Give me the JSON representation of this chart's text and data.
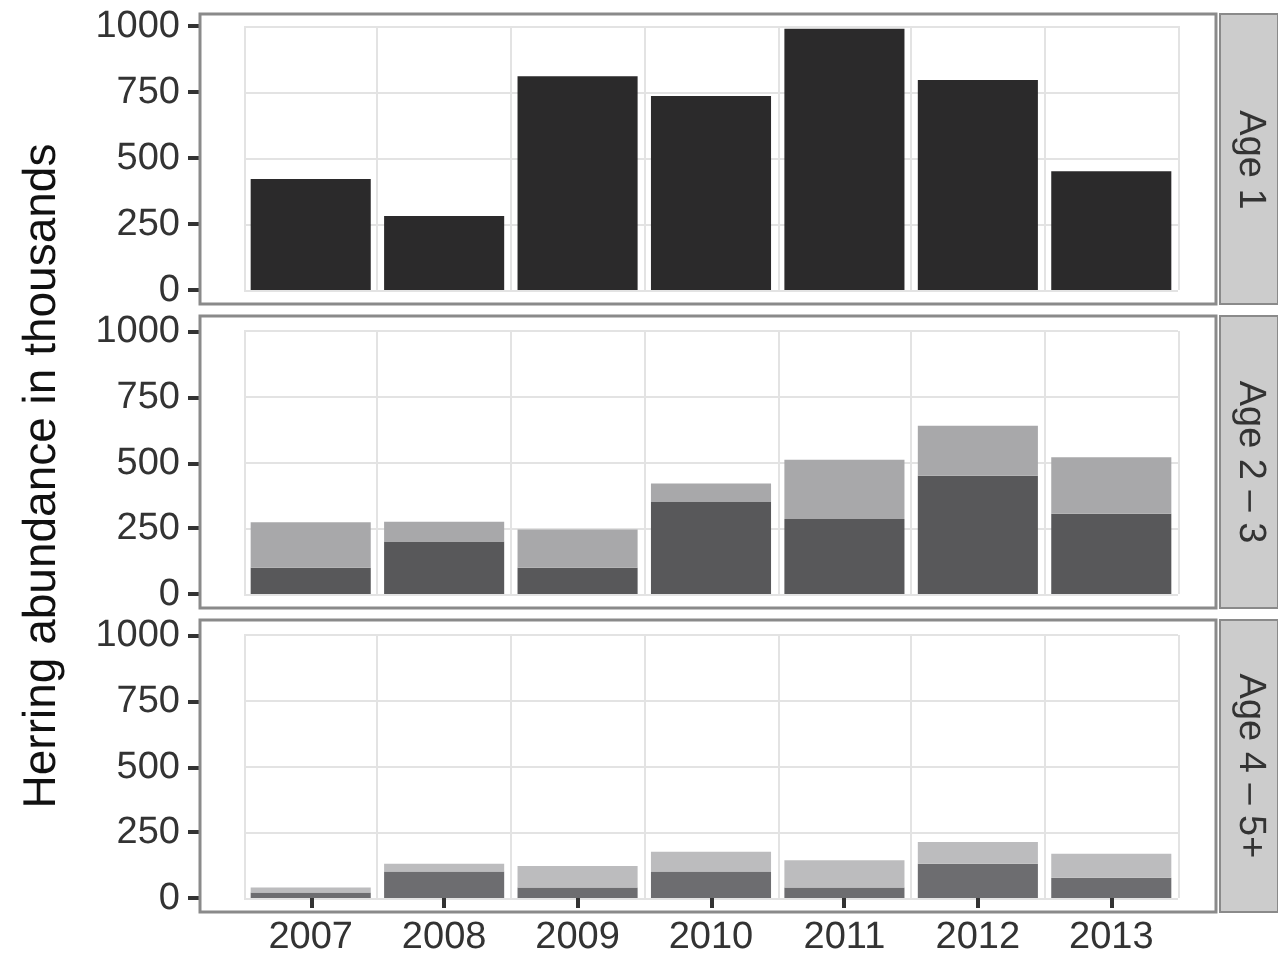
{
  "chart_data": [
    {
      "type": "bar",
      "annotations": [
        "Age 1"
      ],
      "categories": [
        "2007",
        "2008",
        "2009",
        "2010",
        "2011",
        "2012",
        "2013"
      ],
      "color": "#2b2a2b",
      "values": [
        420,
        280,
        810,
        735,
        990,
        795,
        450
      ],
      "ylim": [
        0,
        1000
      ],
      "yticks": [
        0,
        250,
        500,
        750,
        1000
      ],
      "grid": true,
      "tick_labels": "y"
    },
    {
      "type": "bar",
      "annotations": [
        "Age 2 – 3"
      ],
      "ylabel": "Herring abundance in thousands",
      "categories": [
        "2007",
        "2008",
        "2009",
        "2010",
        "2011",
        "2012",
        "2013"
      ],
      "stacked": true,
      "series": [
        {
          "color": "#58585a",
          "values": [
            100,
            200,
            100,
            350,
            285,
            450,
            305
          ]
        },
        {
          "color": "#a8a8aa",
          "values": [
            173,
            75,
            145,
            70,
            225,
            190,
            215
          ]
        }
      ],
      "ylim": [
        0,
        1000
      ],
      "yticks": [
        0,
        250,
        500,
        750,
        1000
      ],
      "grid": true,
      "tick_labels": "y"
    },
    {
      "type": "bar",
      "annotations": [
        "Age 4 – 5+"
      ],
      "categories": [
        "2007",
        "2008",
        "2009",
        "2010",
        "2011",
        "2012",
        "2013"
      ],
      "stacked": true,
      "series": [
        {
          "color": "#6d6d70",
          "values": [
            21,
            101,
            40,
            101,
            40,
            130,
            77
          ]
        },
        {
          "color": "#bcbcbe",
          "values": [
            19,
            29,
            82,
            75,
            104,
            83,
            91
          ]
        }
      ],
      "ylim": [
        0,
        1000
      ],
      "yticks": [
        0,
        250,
        500,
        750,
        1000
      ],
      "grid": true
    }
  ]
}
